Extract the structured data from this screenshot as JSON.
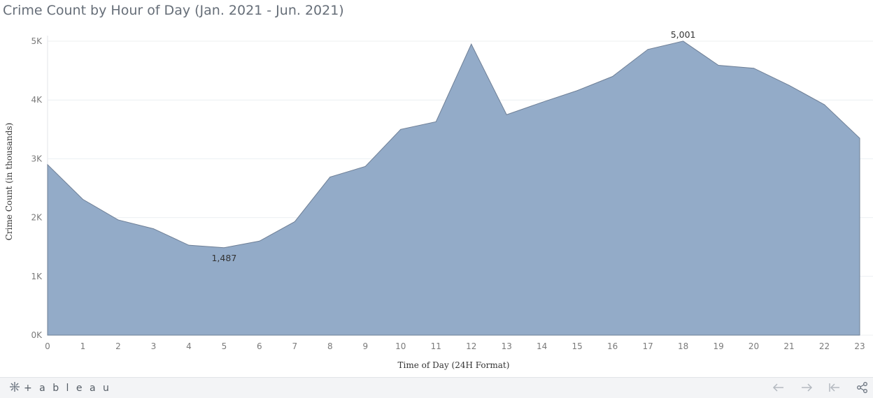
{
  "chart_data": {
    "type": "area",
    "title": "Crime Count by Hour of Day (Jan. 2021 - Jun. 2021)",
    "xlabel": "Time of Day (24H Format)",
    "ylabel": "Crime Count (in thousands)",
    "x": [
      0,
      1,
      2,
      3,
      4,
      5,
      6,
      7,
      8,
      9,
      10,
      11,
      12,
      13,
      14,
      15,
      16,
      17,
      18,
      19,
      20,
      21,
      22,
      23
    ],
    "values": [
      2900,
      2310,
      1960,
      1810,
      1530,
      1487,
      1600,
      1930,
      2690,
      2870,
      3500,
      3630,
      4950,
      3750,
      3960,
      4160,
      4400,
      4860,
      5001,
      4590,
      4540,
      4250,
      3920,
      3350
    ],
    "ylim": [
      0,
      5000
    ],
    "y_ticks": [
      {
        "value": 0,
        "label": "0K"
      },
      {
        "value": 1000,
        "label": "1K"
      },
      {
        "value": 2000,
        "label": "2K"
      },
      {
        "value": 3000,
        "label": "3K"
      },
      {
        "value": 4000,
        "label": "4K"
      },
      {
        "value": 5000,
        "label": "5K"
      }
    ],
    "x_tick_labels": [
      "0",
      "1",
      "2",
      "3",
      "4",
      "5",
      "6",
      "7",
      "8",
      "9",
      "10",
      "11",
      "12",
      "13",
      "14",
      "15",
      "16",
      "17",
      "18",
      "19",
      "20",
      "21",
      "22",
      "23"
    ],
    "annotations": [
      {
        "x": 5,
        "text": "1,487",
        "position": "below"
      },
      {
        "x": 18,
        "text": "5,001",
        "position": "above"
      }
    ],
    "fill_color": "#93abc8",
    "stroke_color": "#6e7f96",
    "grid": true
  },
  "footer": {
    "brand_text": "+ a b l e a u",
    "nav_icons": [
      "back-arrow-icon",
      "forward-arrow-icon",
      "revert-start-icon",
      "share-icon"
    ]
  }
}
